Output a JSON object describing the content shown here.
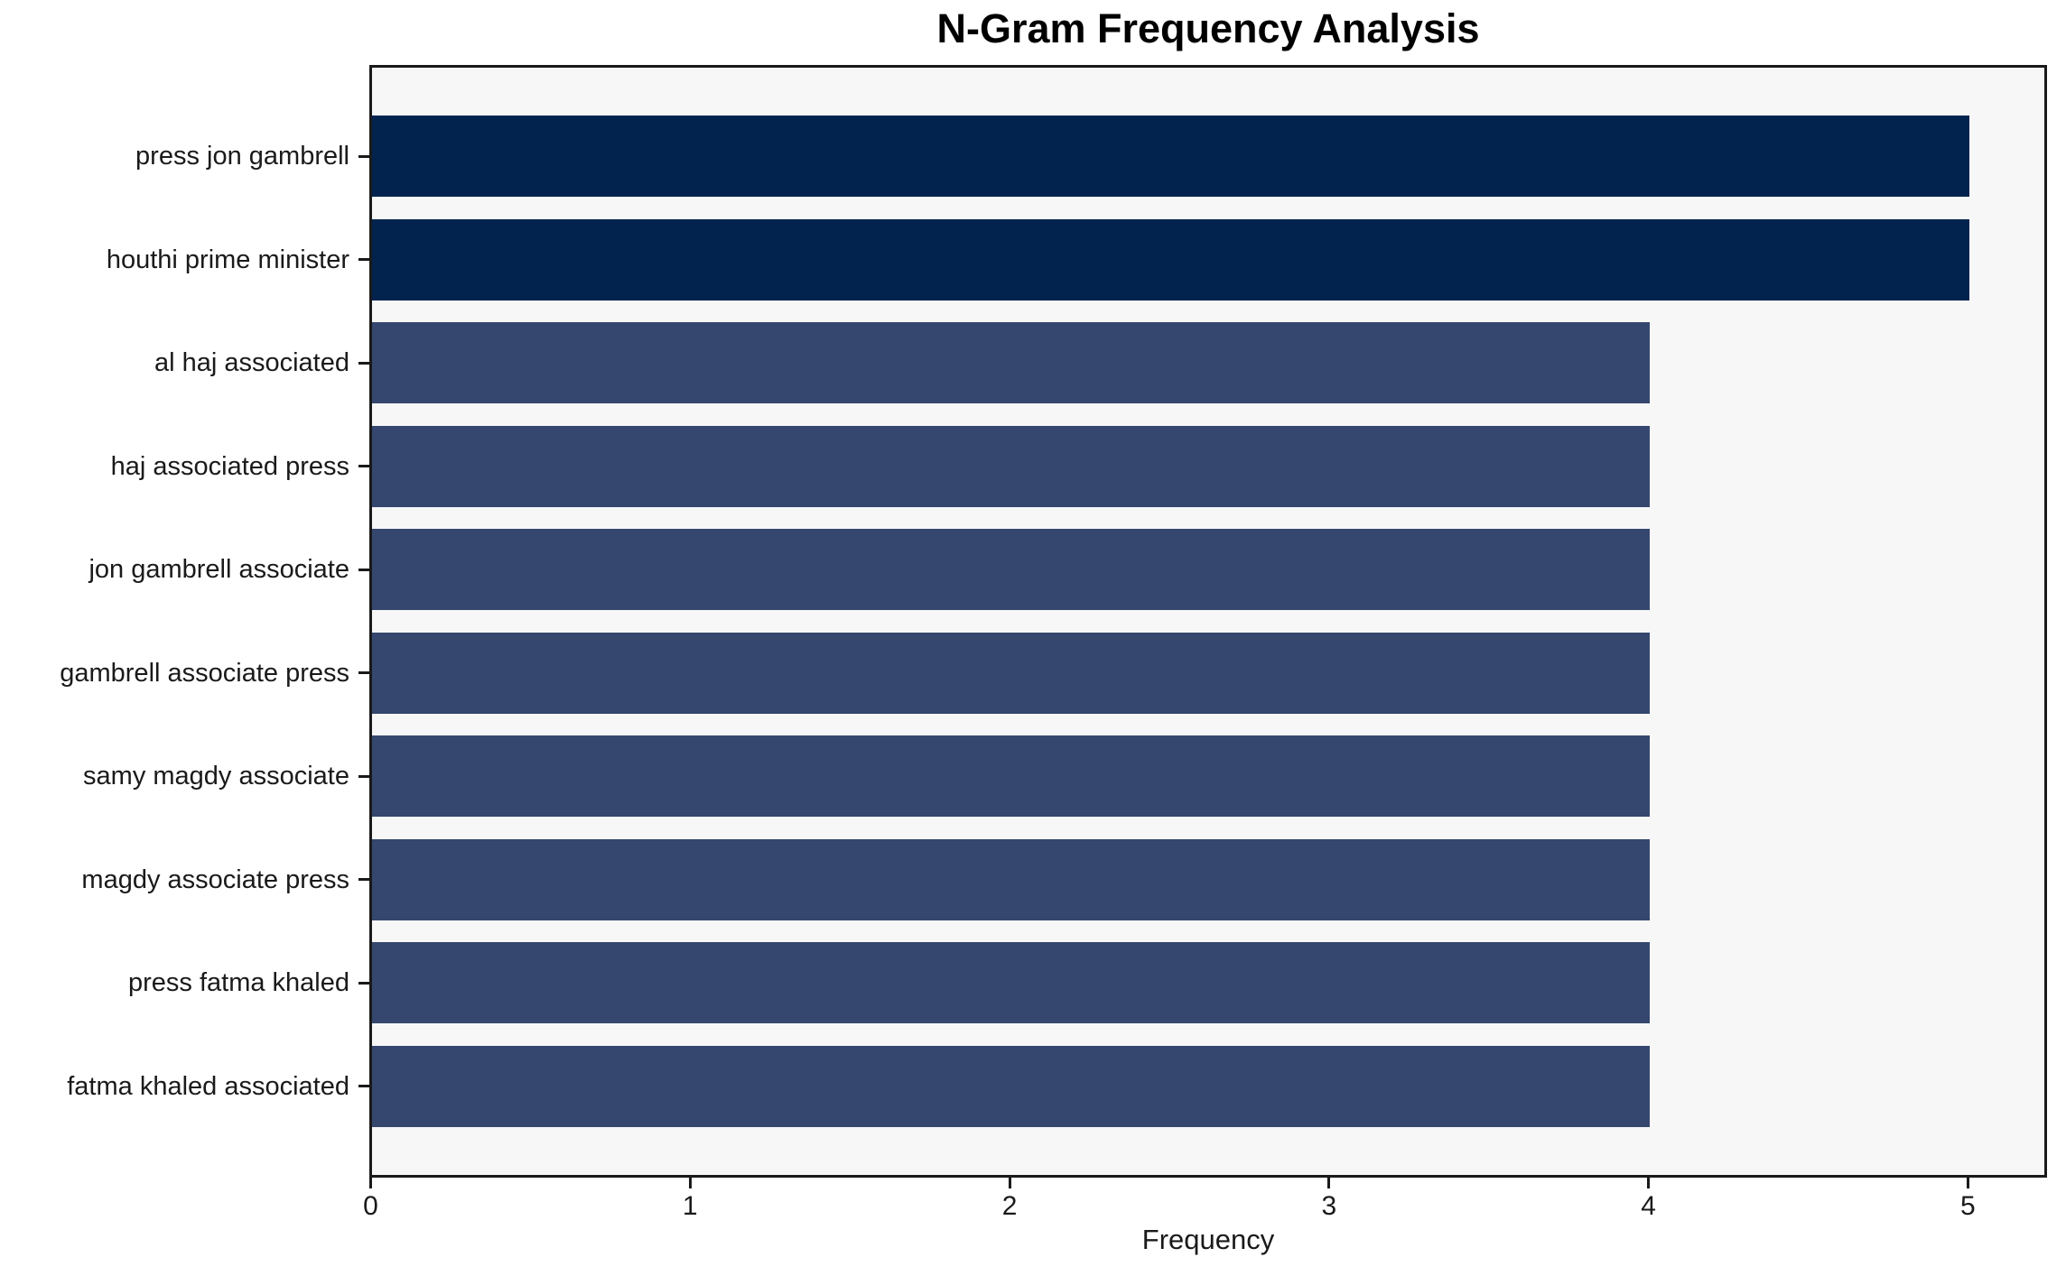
{
  "chart_data": {
    "type": "bar",
    "orientation": "horizontal",
    "title": "N-Gram Frequency Analysis",
    "xlabel": "Frequency",
    "categories": [
      "press jon gambrell",
      "houthi prime minister",
      "al haj associated",
      "haj associated press",
      "jon gambrell associate",
      "gambrell associate press",
      "samy magdy associate",
      "magdy associate press",
      "press fatma khaled",
      "fatma khaled associated"
    ],
    "values": [
      5,
      5,
      4,
      4,
      4,
      4,
      4,
      4,
      4,
      4
    ],
    "bar_colors": [
      "#02234e",
      "#02234e",
      "#35476e",
      "#35476e",
      "#35476e",
      "#35476e",
      "#35476e",
      "#35476e",
      "#35476e",
      "#35476e"
    ],
    "xlim": [
      0,
      5.235
    ],
    "xticks": [
      0,
      1,
      2,
      3,
      4,
      5
    ],
    "grid": false,
    "legend": "none",
    "plot_bg_color": "#f7f7f8",
    "figure_bg_color": "#ffffff",
    "spine_color": "#1a1a1a"
  }
}
